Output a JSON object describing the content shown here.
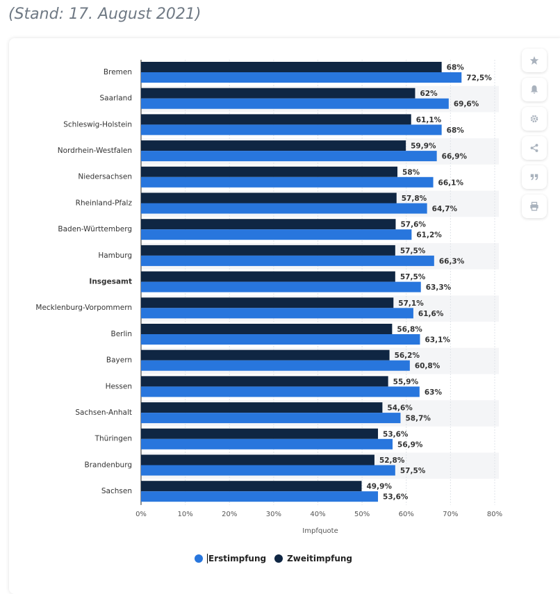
{
  "header": {
    "subtitle": "(Stand: 17. August 2021)"
  },
  "side_buttons": [
    {
      "icon": "star-icon"
    },
    {
      "icon": "bell-icon"
    },
    {
      "icon": "gear-icon"
    },
    {
      "icon": "share-icon"
    },
    {
      "icon": "quote-icon"
    },
    {
      "icon": "print-icon"
    }
  ],
  "colors": {
    "erst": "#2876dd",
    "zweit": "#0f2643",
    "stripe": "#f4f5f7",
    "grid": "#dfe3e8",
    "axis": "#222222"
  },
  "chart_data": {
    "type": "bar",
    "orientation": "horizontal",
    "categories": [
      "Bremen",
      "Saarland",
      "Schleswig-Holstein",
      "Nordrhein-Westfalen",
      "Niedersachsen",
      "Rheinland-Pfalz",
      "Baden-Württemberg",
      "Hamburg",
      "Insgesamt",
      "Mecklenburg-Vorpommern",
      "Berlin",
      "Bayern",
      "Hessen",
      "Sachsen-Anhalt",
      "Thüringen",
      "Brandenburg",
      "Sachsen"
    ],
    "bold_categories": [
      "Insgesamt"
    ],
    "series": [
      {
        "name": "Zweitimpfung",
        "color": "#0f2643",
        "values": [
          68,
          62,
          61.1,
          59.9,
          58,
          57.8,
          57.6,
          57.5,
          57.5,
          57.1,
          56.8,
          56.2,
          55.9,
          54.6,
          53.6,
          52.8,
          49.9
        ],
        "labels": [
          "68%",
          "62%",
          "61,1%",
          "59,9%",
          "58%",
          "57,8%",
          "57,6%",
          "57,5%",
          "57,5%",
          "57,1%",
          "56,8%",
          "56,2%",
          "55,9%",
          "54,6%",
          "53,6%",
          "52,8%",
          "49,9%"
        ]
      },
      {
        "name": "Erstimpfung",
        "color": "#2876dd",
        "values": [
          72.5,
          69.6,
          68,
          66.9,
          66.1,
          64.7,
          61.2,
          66.3,
          63.3,
          61.6,
          63.1,
          60.8,
          63,
          58.7,
          56.9,
          57.5,
          53.6
        ],
        "labels": [
          "72,5%",
          "69,6%",
          "68%",
          "66,9%",
          "66,1%",
          "64,7%",
          "61,2%",
          "66,3%",
          "63,3%",
          "61,6%",
          "63,1%",
          "60,8%",
          "63%",
          "58,7%",
          "56,9%",
          "57,5%",
          "53,6%"
        ]
      }
    ],
    "xticks": [
      "0%",
      "10%",
      "20%",
      "30%",
      "40%",
      "50%",
      "60%",
      "70%",
      "80%"
    ],
    "xlim": [
      0,
      80
    ],
    "xlabel": "Impfquote",
    "grid": true,
    "legend": {
      "position": "bottom",
      "items": [
        "Erstimpfung",
        "Zweitimpfung"
      ]
    }
  }
}
